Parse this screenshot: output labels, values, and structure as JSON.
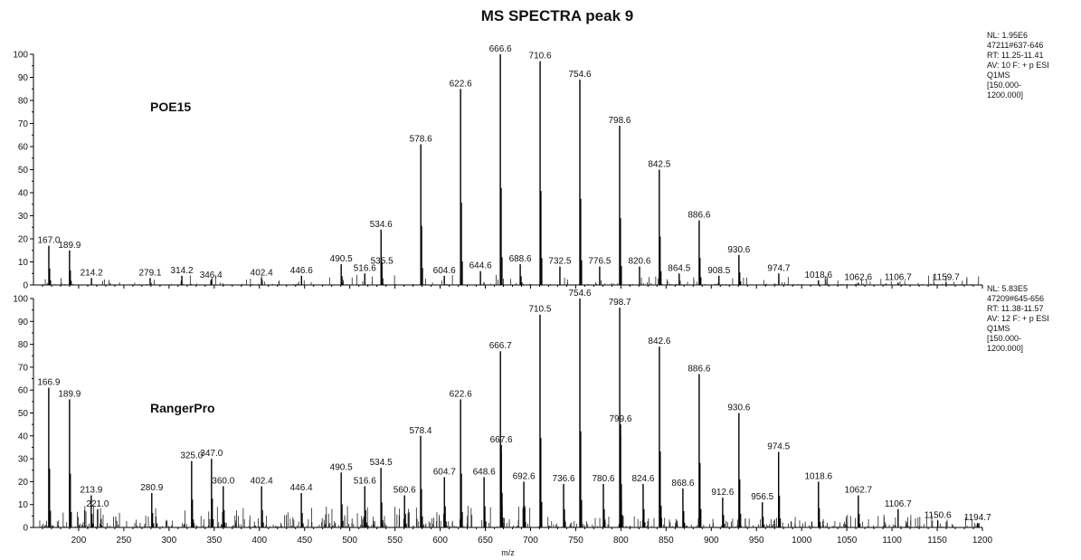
{
  "title": "MS SPECTRA peak 9",
  "chart_data": {
    "type": "bar",
    "title": "MS SPECTRA peak 9",
    "xlabel": "m/z",
    "xlim": [
      150,
      1200
    ],
    "x_ticks": [
      200,
      250,
      300,
      350,
      400,
      450,
      500,
      550,
      600,
      650,
      700,
      750,
      800,
      850,
      900,
      950,
      1000,
      1050,
      1100,
      1150,
      1200
    ],
    "ylim": [
      0,
      100
    ],
    "y_ticks": [
      0,
      10,
      20,
      30,
      40,
      50,
      60,
      70,
      80,
      90,
      100
    ],
    "panels": [
      {
        "name": "POE15",
        "info": [
          "NL: 1.95E6",
          "47211#637-646",
          "RT: 11.25-11.41",
          "AV: 10 F: + p ESI",
          "Q1MS",
          "[150.000-",
          "1200.000]"
        ],
        "peaks": [
          {
            "mz": 167.0,
            "intensity": 17
          },
          {
            "mz": 189.9,
            "intensity": 15
          },
          {
            "mz": 214.2,
            "intensity": 3
          },
          {
            "mz": 279.1,
            "intensity": 3
          },
          {
            "mz": 314.2,
            "intensity": 4
          },
          {
            "mz": 346.4,
            "intensity": 2
          },
          {
            "mz": 402.4,
            "intensity": 3
          },
          {
            "mz": 446.6,
            "intensity": 4
          },
          {
            "mz": 490.5,
            "intensity": 9
          },
          {
            "mz": 516.6,
            "intensity": 5
          },
          {
            "mz": 534.6,
            "intensity": 24
          },
          {
            "mz": 535.5,
            "intensity": 8
          },
          {
            "mz": 578.6,
            "intensity": 61
          },
          {
            "mz": 604.6,
            "intensity": 4
          },
          {
            "mz": 622.6,
            "intensity": 85
          },
          {
            "mz": 644.6,
            "intensity": 6
          },
          {
            "mz": 666.6,
            "intensity": 100
          },
          {
            "mz": 688.6,
            "intensity": 9
          },
          {
            "mz": 710.6,
            "intensity": 97
          },
          {
            "mz": 732.5,
            "intensity": 8
          },
          {
            "mz": 754.6,
            "intensity": 89
          },
          {
            "mz": 776.5,
            "intensity": 8
          },
          {
            "mz": 798.6,
            "intensity": 69
          },
          {
            "mz": 820.6,
            "intensity": 8
          },
          {
            "mz": 842.5,
            "intensity": 50
          },
          {
            "mz": 864.5,
            "intensity": 5
          },
          {
            "mz": 886.6,
            "intensity": 28
          },
          {
            "mz": 908.5,
            "intensity": 4
          },
          {
            "mz": 930.6,
            "intensity": 13
          },
          {
            "mz": 974.7,
            "intensity": 5
          },
          {
            "mz": 1018.6,
            "intensity": 2
          },
          {
            "mz": 1062.6,
            "intensity": 1
          },
          {
            "mz": 1106.7,
            "intensity": 1
          },
          {
            "mz": 1159.7,
            "intensity": 1
          }
        ]
      },
      {
        "name": "RangerPro",
        "info": [
          "NL: 5.83E5",
          "47209#645-656",
          "RT: 11.38-11.57",
          "AV: 12 F: + p ESI",
          "Q1MS",
          "[150.000-",
          "1200.000]"
        ],
        "peaks": [
          {
            "mz": 166.9,
            "intensity": 61
          },
          {
            "mz": 189.9,
            "intensity": 56
          },
          {
            "mz": 213.9,
            "intensity": 14
          },
          {
            "mz": 221.0,
            "intensity": 8
          },
          {
            "mz": 280.9,
            "intensity": 15
          },
          {
            "mz": 325.0,
            "intensity": 29
          },
          {
            "mz": 347.0,
            "intensity": 30
          },
          {
            "mz": 360.0,
            "intensity": 18
          },
          {
            "mz": 402.4,
            "intensity": 18
          },
          {
            "mz": 446.4,
            "intensity": 15
          },
          {
            "mz": 490.5,
            "intensity": 24
          },
          {
            "mz": 516.6,
            "intensity": 18
          },
          {
            "mz": 534.5,
            "intensity": 26
          },
          {
            "mz": 560.6,
            "intensity": 14
          },
          {
            "mz": 578.4,
            "intensity": 40
          },
          {
            "mz": 604.7,
            "intensity": 22
          },
          {
            "mz": 622.6,
            "intensity": 56
          },
          {
            "mz": 648.6,
            "intensity": 22
          },
          {
            "mz": 666.7,
            "intensity": 77
          },
          {
            "mz": 667.6,
            "intensity": 36
          },
          {
            "mz": 692.6,
            "intensity": 20
          },
          {
            "mz": 710.5,
            "intensity": 93
          },
          {
            "mz": 736.6,
            "intensity": 19
          },
          {
            "mz": 754.6,
            "intensity": 100
          },
          {
            "mz": 780.6,
            "intensity": 19
          },
          {
            "mz": 798.7,
            "intensity": 96
          },
          {
            "mz": 799.6,
            "intensity": 45
          },
          {
            "mz": 824.6,
            "intensity": 19
          },
          {
            "mz": 842.6,
            "intensity": 79
          },
          {
            "mz": 868.6,
            "intensity": 17
          },
          {
            "mz": 886.6,
            "intensity": 67
          },
          {
            "mz": 912.6,
            "intensity": 13
          },
          {
            "mz": 930.6,
            "intensity": 50
          },
          {
            "mz": 956.5,
            "intensity": 11
          },
          {
            "mz": 974.5,
            "intensity": 33
          },
          {
            "mz": 1018.6,
            "intensity": 20
          },
          {
            "mz": 1062.7,
            "intensity": 14
          },
          {
            "mz": 1106.7,
            "intensity": 8
          },
          {
            "mz": 1150.6,
            "intensity": 3
          },
          {
            "mz": 1194.7,
            "intensity": 2
          }
        ]
      }
    ]
  }
}
